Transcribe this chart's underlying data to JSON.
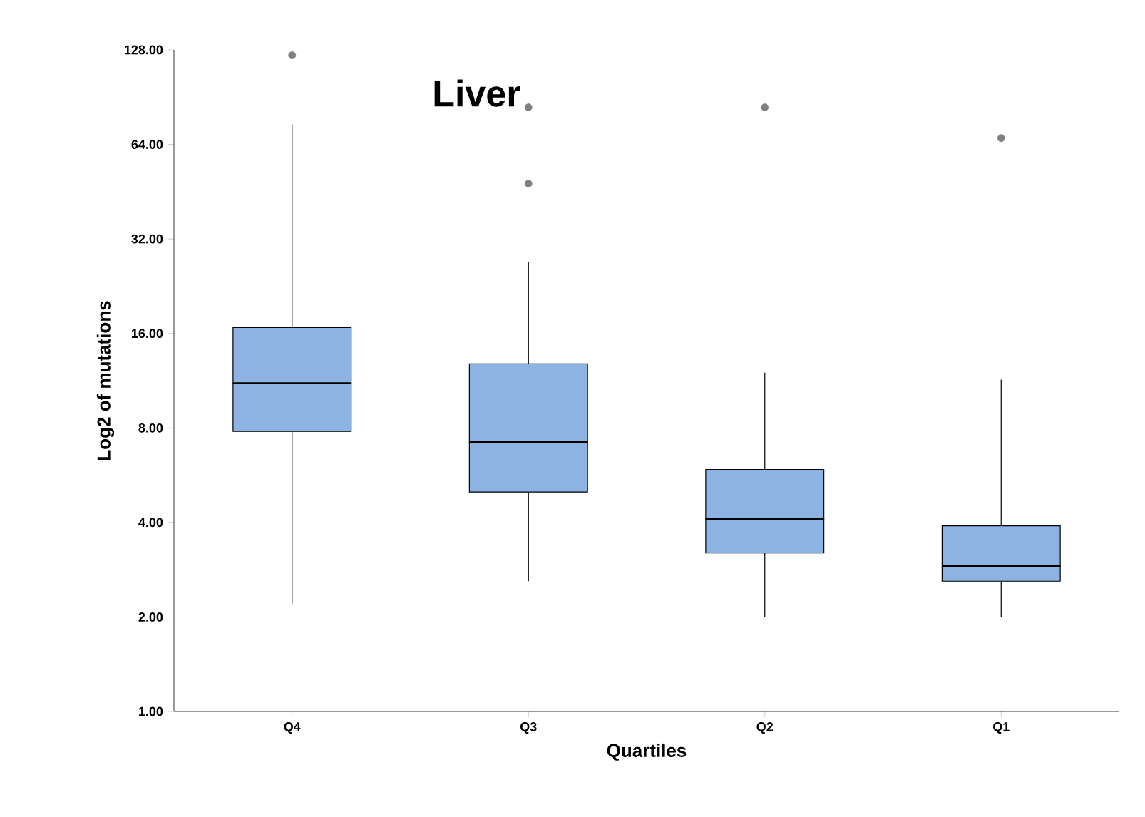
{
  "chart_data": {
    "type": "box",
    "title": "Liver",
    "xlabel": "Quartiles",
    "ylabel": "Log2 of mutations",
    "categories": [
      "Q4",
      "Q3",
      "Q2",
      "Q1"
    ],
    "log": "y",
    "ylim": [
      1,
      128
    ],
    "yticks": [
      {
        "value": 1,
        "label": "1.00"
      },
      {
        "value": 2,
        "label": "2.00"
      },
      {
        "value": 4,
        "label": "4.00"
      },
      {
        "value": 8,
        "label": "8.00"
      },
      {
        "value": 16,
        "label": "16.00"
      },
      {
        "value": 32,
        "label": "32.00"
      },
      {
        "value": 64,
        "label": "64.00"
      },
      {
        "value": 128,
        "label": "128.00"
      }
    ],
    "grid": false,
    "series": [
      {
        "color": "#8db3e2",
        "boxes": [
          {
            "low": 2.2,
            "q1": 7.8,
            "median": 11.1,
            "q3": 16.7,
            "high": 74,
            "outliers": [
              123
            ]
          },
          {
            "low": 2.6,
            "q1": 5.0,
            "median": 7.2,
            "q3": 12.8,
            "high": 27,
            "outliers": [
              84,
              48
            ]
          },
          {
            "low": 2.0,
            "q1": 3.2,
            "median": 4.1,
            "q3": 5.9,
            "high": 12,
            "outliers": [
              84
            ]
          },
          {
            "low": 2.0,
            "q1": 2.6,
            "median": 2.9,
            "q3": 3.9,
            "high": 11.4,
            "outliers": [
              67
            ]
          }
        ]
      }
    ]
  }
}
